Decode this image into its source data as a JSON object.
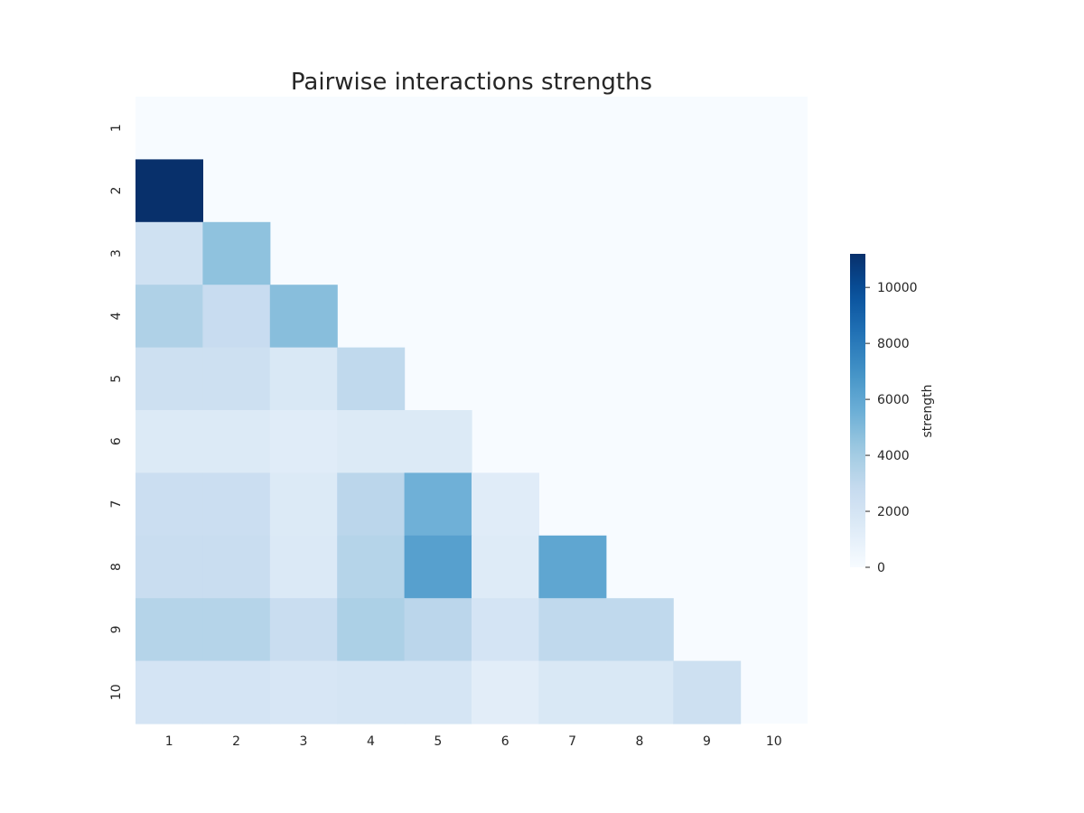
{
  "chart_data": {
    "type": "heatmap",
    "title": "Pairwise interactions strengths",
    "xlabel": "",
    "ylabel": "",
    "x_categories": [
      "1",
      "2",
      "3",
      "4",
      "5",
      "6",
      "7",
      "8",
      "9",
      "10"
    ],
    "y_categories": [
      "1",
      "2",
      "3",
      "4",
      "5",
      "6",
      "7",
      "8",
      "9",
      "10"
    ],
    "mask": "upper-triangle-including-diagonal",
    "values": [
      [
        null,
        null,
        null,
        null,
        null,
        null,
        null,
        null,
        null,
        null
      ],
      [
        11200,
        null,
        null,
        null,
        null,
        null,
        null,
        null,
        null,
        null
      ],
      [
        2300,
        4600,
        null,
        null,
        null,
        null,
        null,
        null,
        null,
        null
      ],
      [
        3600,
        2700,
        4800,
        null,
        null,
        null,
        null,
        null,
        null,
        null
      ],
      [
        2400,
        2400,
        1700,
        3000,
        null,
        null,
        null,
        null,
        null,
        null
      ],
      [
        1500,
        1500,
        1300,
        1500,
        1500,
        null,
        null,
        null,
        null,
        null
      ],
      [
        2500,
        2500,
        1500,
        3200,
        5500,
        1300,
        null,
        null,
        null,
        null
      ],
      [
        2600,
        2600,
        1600,
        3400,
        6300,
        1400,
        6000,
        null,
        null,
        null
      ],
      [
        3400,
        3400,
        2600,
        3700,
        3200,
        2000,
        3000,
        3000,
        null,
        null
      ],
      [
        2000,
        2000,
        1800,
        1900,
        1900,
        1200,
        1700,
        1700,
        2400,
        null
      ]
    ],
    "colormap": "Blues",
    "vmin": 0,
    "vmax": 11200,
    "colorbar": {
      "label": "strength",
      "ticks": [
        0,
        2000,
        4000,
        6000,
        8000,
        10000
      ]
    },
    "grid": false
  }
}
